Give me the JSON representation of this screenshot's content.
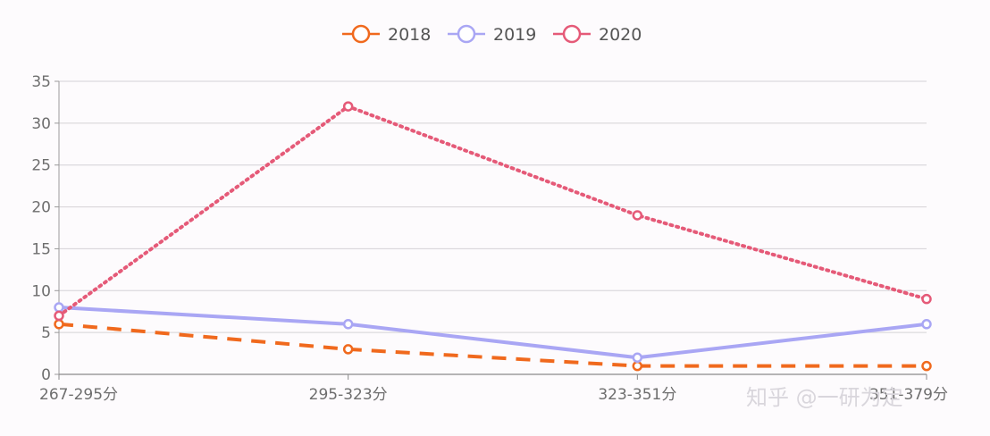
{
  "chart_data": {
    "type": "line",
    "categories": [
      "267-295分",
      "295-323分",
      "323-351分",
      "351-379分"
    ],
    "ylim": [
      0,
      35
    ],
    "yticks": [
      0,
      5,
      10,
      15,
      20,
      25,
      30,
      35
    ],
    "grid": true,
    "legend": "top-center",
    "series": [
      {
        "name": "2018",
        "values": [
          6,
          3,
          1,
          1
        ],
        "color": "#f0691d",
        "style": "dashed"
      },
      {
        "name": "2019",
        "values": [
          8,
          6,
          2,
          6
        ],
        "color": "#a9a6f4",
        "style": "solid"
      },
      {
        "name": "2020",
        "values": [
          7,
          32,
          19,
          9
        ],
        "color": "#e55a78",
        "style": "dotted"
      }
    ]
  },
  "watermark": "知乎 @一研为定"
}
